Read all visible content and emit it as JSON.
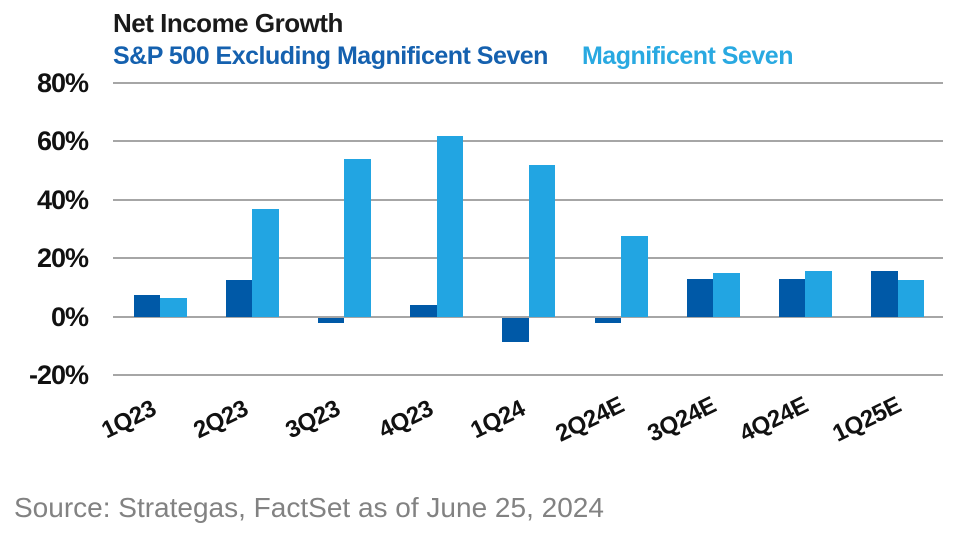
{
  "source": "Source: Strategas, FactSet as of June 25, 2024",
  "colors": {
    "bar_dark": "#0059a7",
    "bar_light": "#22a5e2",
    "legend_dark_text": "#1561af",
    "legend_light_text": "#29a9e1",
    "gridline": "#a6a6a6",
    "axis_text": "#111111",
    "title_text": "#1a1a1a",
    "source_text": "#828282"
  },
  "chart_data": {
    "type": "bar",
    "title": "Net Income Growth",
    "categories": [
      "1Q23",
      "2Q23",
      "3Q23",
      "4Q23",
      "1Q24",
      "2Q24E",
      "3Q24E",
      "4Q24E",
      "1Q25E"
    ],
    "series": [
      {
        "name": "S&P 500 Excluding Magnificent Seven",
        "color": "#0059a7",
        "values": [
          7.5,
          12.5,
          -2,
          4,
          -8.5,
          -2,
          13,
          13,
          15.5
        ]
      },
      {
        "name": "Magnificent Seven",
        "color": "#22a5e2",
        "values": [
          6.5,
          37,
          54,
          62,
          52,
          27.5,
          15,
          15.5,
          12.5
        ]
      }
    ],
    "y_ticks": [
      {
        "label": "80%",
        "value": 80
      },
      {
        "label": "60%",
        "value": 60
      },
      {
        "label": "40%",
        "value": 40
      },
      {
        "label": "20%",
        "value": 20
      },
      {
        "label": "0%",
        "value": 0
      },
      {
        "label": "-20%",
        "value": -20
      }
    ],
    "ylim": [
      -20,
      80
    ],
    "grid": "horizontal",
    "legend_position": "top",
    "xlabel": "",
    "ylabel": ""
  }
}
